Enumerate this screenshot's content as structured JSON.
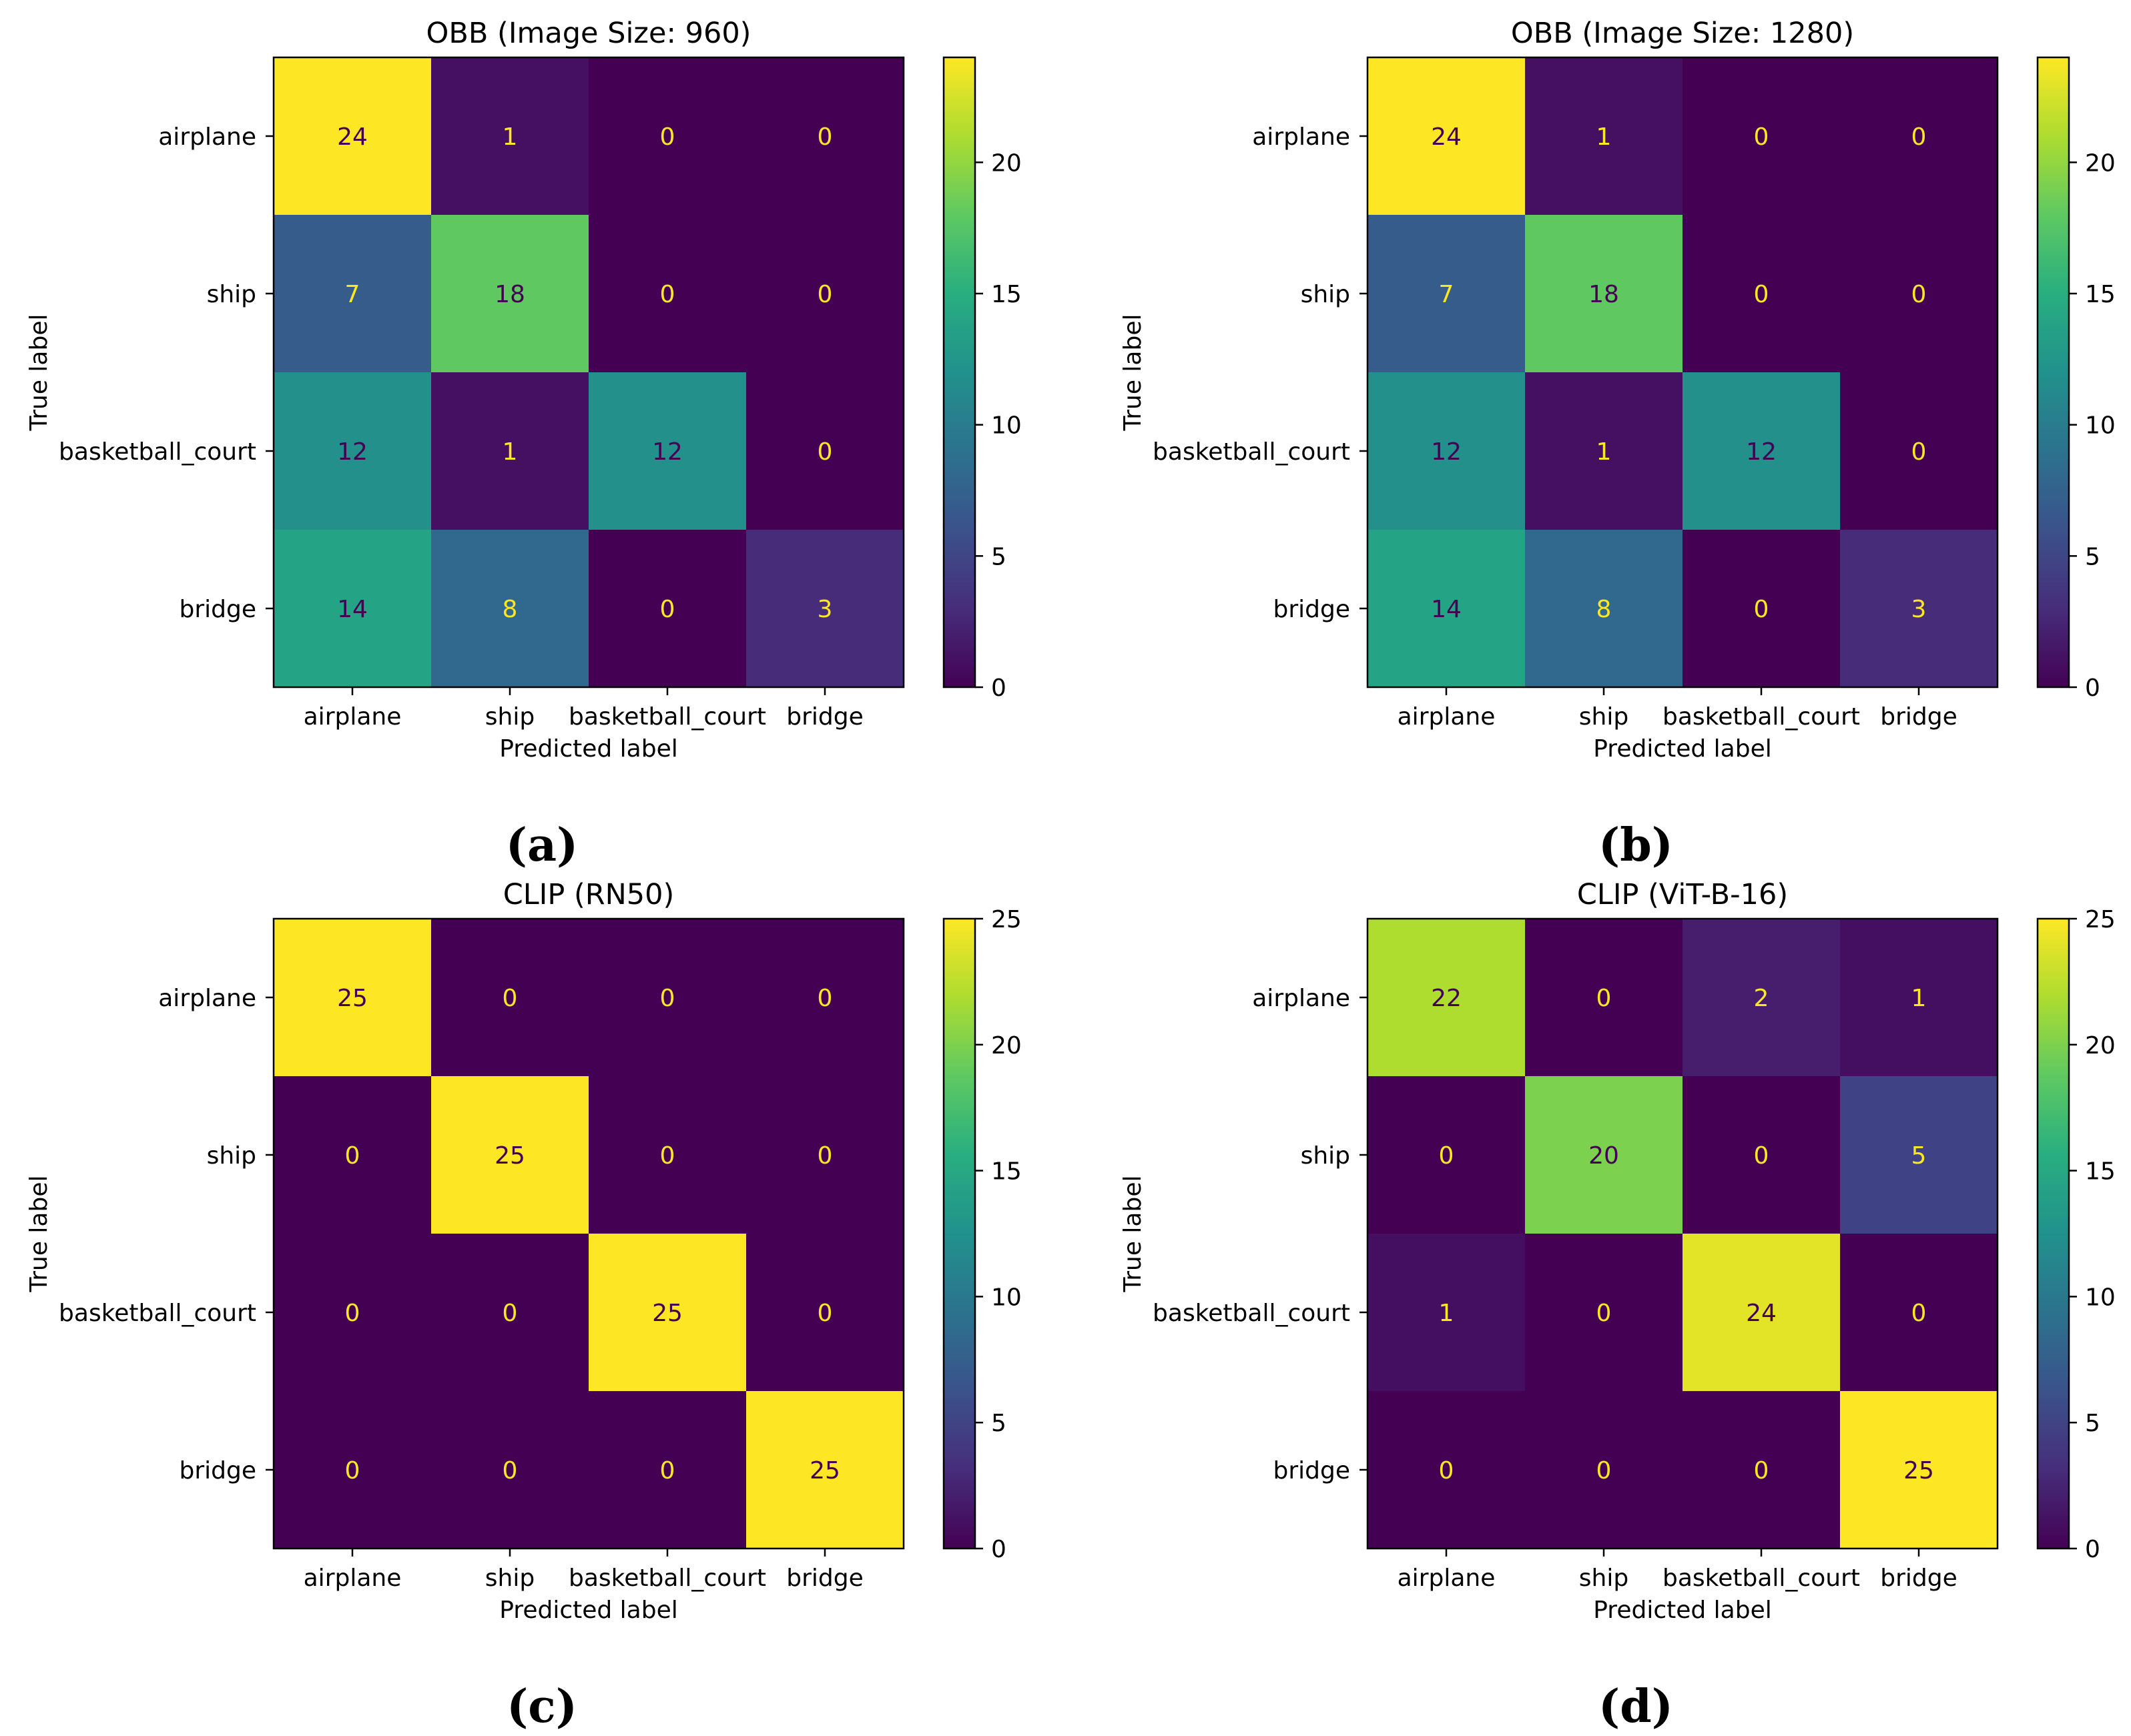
{
  "figure": {
    "captions": [
      "(a)",
      "(b)",
      "(c)",
      "(d)"
    ]
  },
  "chart_data": [
    {
      "type": "heatmap",
      "title": "OBB (Image Size: 960)",
      "xlabel": "Predicted label",
      "ylabel": "True label",
      "x_categories": [
        "airplane",
        "ship",
        "basketball_court",
        "bridge"
      ],
      "y_categories": [
        "airplane",
        "ship",
        "basketball_court",
        "bridge"
      ],
      "values": [
        [
          24,
          1,
          0,
          0
        ],
        [
          7,
          18,
          0,
          0
        ],
        [
          12,
          1,
          12,
          0
        ],
        [
          14,
          8,
          0,
          3
        ]
      ],
      "colormap": "viridis",
      "colorbar": {
        "range": [
          0,
          24
        ],
        "ticks": [
          0,
          5,
          10,
          15,
          20
        ]
      }
    },
    {
      "type": "heatmap",
      "title": "OBB (Image Size: 1280)",
      "xlabel": "Predicted label",
      "ylabel": "True label",
      "x_categories": [
        "airplane",
        "ship",
        "basketball_court",
        "bridge"
      ],
      "y_categories": [
        "airplane",
        "ship",
        "basketball_court",
        "bridge"
      ],
      "values": [
        [
          24,
          1,
          0,
          0
        ],
        [
          7,
          18,
          0,
          0
        ],
        [
          12,
          1,
          12,
          0
        ],
        [
          14,
          8,
          0,
          3
        ]
      ],
      "colormap": "viridis",
      "colorbar": {
        "range": [
          0,
          24
        ],
        "ticks": [
          0,
          5,
          10,
          15,
          20
        ]
      }
    },
    {
      "type": "heatmap",
      "title": "CLIP (RN50)",
      "xlabel": "Predicted label",
      "ylabel": "True label",
      "x_categories": [
        "airplane",
        "ship",
        "basketball_court",
        "bridge"
      ],
      "y_categories": [
        "airplane",
        "ship",
        "basketball_court",
        "bridge"
      ],
      "values": [
        [
          25,
          0,
          0,
          0
        ],
        [
          0,
          25,
          0,
          0
        ],
        [
          0,
          0,
          25,
          0
        ],
        [
          0,
          0,
          0,
          25
        ]
      ],
      "colormap": "viridis",
      "colorbar": {
        "range": [
          0,
          25
        ],
        "ticks": [
          0,
          5,
          10,
          15,
          20,
          25
        ]
      }
    },
    {
      "type": "heatmap",
      "title": "CLIP (ViT-B-16)",
      "xlabel": "Predicted label",
      "ylabel": "True label",
      "x_categories": [
        "airplane",
        "ship",
        "basketball_court",
        "bridge"
      ],
      "y_categories": [
        "airplane",
        "ship",
        "basketball_court",
        "bridge"
      ],
      "values": [
        [
          22,
          0,
          2,
          1
        ],
        [
          0,
          20,
          0,
          5
        ],
        [
          1,
          0,
          24,
          0
        ],
        [
          0,
          0,
          0,
          25
        ]
      ],
      "colormap": "viridis",
      "colorbar": {
        "range": [
          0,
          25
        ],
        "ticks": [
          0,
          5,
          10,
          15,
          20,
          25
        ]
      }
    }
  ]
}
